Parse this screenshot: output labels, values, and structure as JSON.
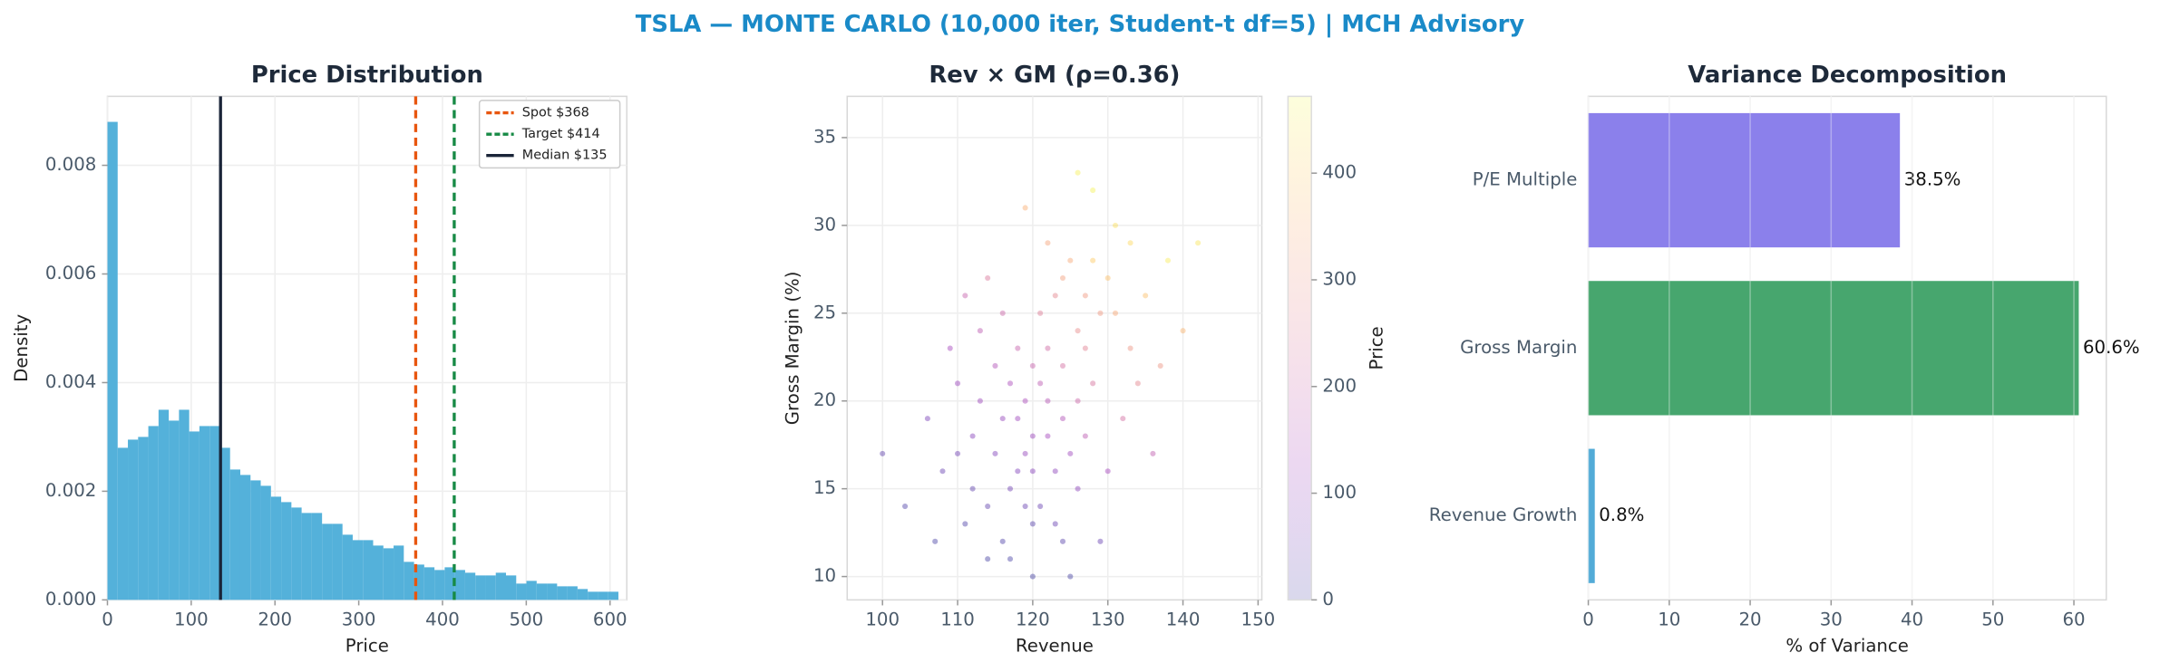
{
  "title": "TSLA — MONTE CARLO (10,000 iter, Student-t df=5) | MCH Advisory",
  "chart_data": [
    {
      "type": "histogram",
      "title": "Price Distribution",
      "x_label": "Price",
      "y_label": "Density",
      "bins": [
        0,
        12.2,
        24.4,
        36.6,
        48.8,
        61,
        73.2,
        85.4,
        97.6,
        109.8,
        122,
        134.2,
        146.4,
        158.6,
        170.8,
        183,
        195.2,
        207.4,
        219.6,
        231.8,
        244,
        256.2,
        268.4,
        280.6,
        292.8,
        305,
        317.2,
        329.4,
        341.6,
        353.8,
        366,
        378.2,
        390.4,
        402.6,
        414.8,
        427,
        439.2,
        451.4,
        463.6,
        475.8,
        488,
        500.2,
        512.4,
        524.6,
        536.8,
        549,
        561.2,
        573.4,
        585.6,
        597.8,
        610
      ],
      "values": [
        0.0088,
        0.0028,
        0.00295,
        0.003,
        0.0032,
        0.0035,
        0.0033,
        0.0035,
        0.0031,
        0.0032,
        0.0032,
        0.0028,
        0.0024,
        0.0023,
        0.0022,
        0.0021,
        0.0019,
        0.0018,
        0.0017,
        0.0016,
        0.0016,
        0.0014,
        0.0014,
        0.0012,
        0.0011,
        0.0011,
        0.001,
        0.00095,
        0.001,
        0.0007,
        0.00065,
        0.0006,
        0.00055,
        0.0006,
        0.00055,
        0.0005,
        0.00045,
        0.00045,
        0.0005,
        0.00045,
        0.0003,
        0.00035,
        0.0003,
        0.0003,
        0.00025,
        0.00025,
        0.0002,
        0.00015,
        0.00015,
        0.00015
      ],
      "color": "#4badd8",
      "xlim": [
        0,
        620
      ],
      "ylim": [
        0,
        0.00927
      ],
      "xticks": [
        0,
        100,
        200,
        300,
        400,
        500,
        600
      ],
      "yticks": [
        {
          "value": 0,
          "label": "0.000"
        },
        {
          "value": 0.002,
          "label": "0.002"
        },
        {
          "value": 0.004,
          "label": "0.004"
        },
        {
          "value": 0.006,
          "label": "0.006"
        },
        {
          "value": 0.008,
          "label": "0.008"
        }
      ],
      "grid": true,
      "legend": "upper right",
      "reference_lines": [
        {
          "name": "Spot $368",
          "value": 368,
          "color": "#e8560f",
          "style": "dashed"
        },
        {
          "name": "Target $414",
          "value": 414,
          "color": "#178a45",
          "style": "dashed"
        },
        {
          "name": "Median $135",
          "value": 135,
          "color": "#1a2438",
          "style": "solid"
        }
      ]
    },
    {
      "type": "scatter",
      "title": "Rev × GM (ρ=0.36)",
      "x_label": "Revenue",
      "y_label": "Gross Margin (%)",
      "x": [
        122,
        118,
        126,
        114,
        130,
        120,
        112,
        124,
        128,
        116,
        121,
        119,
        133,
        110,
        125,
        117,
        123,
        127,
        115,
        131,
        108,
        120,
        126,
        113,
        135,
        119,
        122,
        111,
        129,
        124,
        106,
        138,
        118,
        121,
        132,
        116,
        125,
        114,
        128,
        103,
        140,
        120,
        123,
        117,
        127,
        109,
        130,
        122,
        119,
        134,
        112,
        126,
        115,
        121,
        136,
        107,
        124,
        118,
        131,
        113,
        125,
        120,
        128,
        110,
        142,
        116,
        123,
        133,
        119,
        126,
        100,
        129,
        117,
        122,
        137,
        111,
        124,
        127,
        114,
        120
      ],
      "y": [
        20,
        16,
        24,
        14,
        27,
        22,
        18,
        19,
        21,
        12,
        25,
        17,
        23,
        21,
        28,
        15,
        13,
        18,
        22,
        30,
        16,
        10,
        15,
        24,
        26,
        20,
        29,
        13,
        25,
        22,
        19,
        28,
        23,
        14,
        19,
        19,
        17,
        27,
        32,
        14,
        24,
        16,
        26,
        11,
        23,
        23,
        16,
        18,
        31,
        21,
        15,
        20,
        17,
        21,
        17,
        12,
        27,
        19,
        25,
        20,
        10,
        13,
        28,
        17,
        29,
        25,
        16,
        29,
        14,
        33,
        17,
        12,
        21,
        23,
        22,
        26,
        12,
        26,
        11,
        18
      ],
      "color_values": [
        160,
        70,
        280,
        30,
        380,
        190,
        80,
        150,
        230,
        10,
        250,
        100,
        300,
        110,
        340,
        50,
        40,
        170,
        150,
        430,
        40,
        0,
        90,
        170,
        380,
        140,
        330,
        10,
        310,
        220,
        60,
        450,
        190,
        40,
        220,
        100,
        120,
        240,
        460,
        10,
        360,
        80,
        270,
        5,
        260,
        130,
        130,
        130,
        350,
        270,
        30,
        200,
        70,
        170,
        180,
        5,
        320,
        120,
        340,
        110,
        0,
        20,
        400,
        50,
        440,
        200,
        90,
        420,
        40,
        455,
        30,
        40,
        140,
        210,
        300,
        190,
        20,
        310,
        0,
        110
      ],
      "colormap": "plasma",
      "alpha": 0.35,
      "xlim": [
        95.3,
        150.5
      ],
      "ylim": [
        8.67,
        37.35
      ],
      "xticks": [
        100,
        110,
        120,
        130,
        140,
        150
      ],
      "yticks": [
        10,
        15,
        20,
        25,
        30,
        35
      ],
      "grid": true,
      "colorbar": {
        "label": "Price",
        "lim": [
          0,
          472
        ],
        "ticks": [
          0,
          100,
          200,
          300,
          400
        ]
      }
    },
    {
      "type": "barh",
      "title": "Variance Decomposition",
      "x_label": "% of Variance",
      "categories": [
        "P/E Multiple",
        "Gross Margin",
        "Revenue Growth"
      ],
      "values": [
        38.5,
        60.6,
        0.8
      ],
      "value_labels": [
        "38.5%",
        "60.6%",
        "0.8%"
      ],
      "colors": [
        "#7b6ee8",
        "#2e9a5a",
        "#3a9fd1"
      ],
      "xlim": [
        0,
        64
      ],
      "xticks": [
        0,
        10,
        20,
        30,
        40,
        50,
        60
      ],
      "grid": true
    }
  ]
}
